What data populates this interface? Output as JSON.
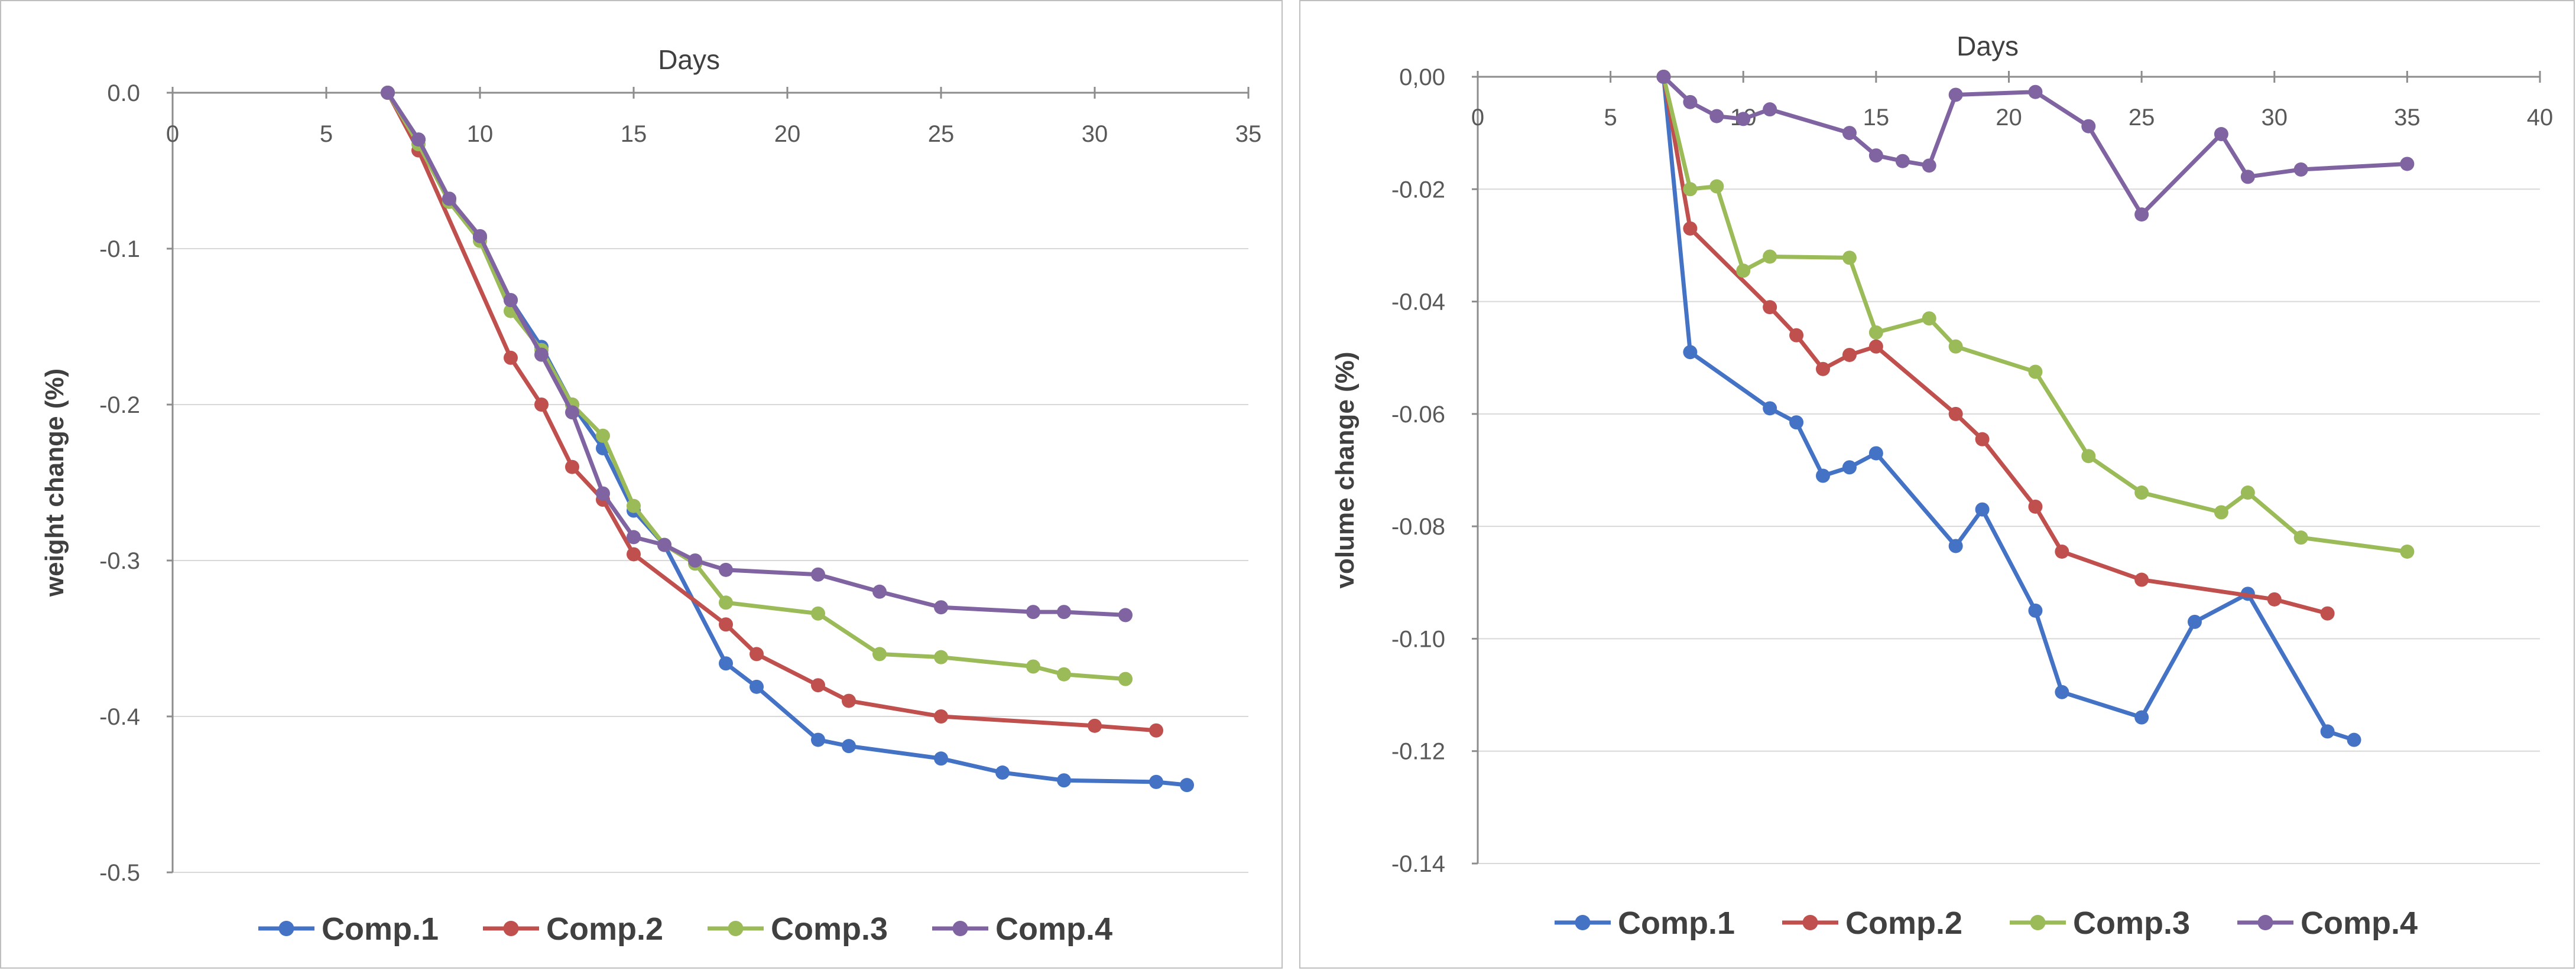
{
  "chart_data": [
    {
      "type": "line",
      "xlabel": "Days",
      "ylabel": "weight change (%)",
      "xlim": [
        0,
        35
      ],
      "ylim": [
        -0.5,
        0
      ],
      "x_ticks": [
        0,
        5,
        10,
        15,
        20,
        25,
        30,
        35
      ],
      "x_tick_labels": [
        "0",
        "5",
        "10",
        "15",
        "20",
        "25",
        "30",
        "35"
      ],
      "y_ticks": [
        0,
        -0.1,
        -0.2,
        -0.3,
        -0.4,
        -0.5
      ],
      "y_tick_labels": [
        "0.0",
        "-0.1",
        "-0.2",
        "-0.3",
        "-0.4",
        "-0.5"
      ],
      "x_axis_position": "top",
      "legend_position": "bottom",
      "series": [
        {
          "name": "Comp.1",
          "color": "#4472c4",
          "x": [
            7,
            8,
            9,
            10,
            11,
            12,
            13,
            14,
            15,
            16,
            18,
            19,
            21,
            22,
            25,
            27,
            29,
            32,
            33
          ],
          "y": [
            0,
            -0.03,
            -0.068,
            -0.093,
            -0.133,
            -0.163,
            -0.2,
            -0.228,
            -0.268,
            -0.29,
            -0.366,
            -0.381,
            -0.415,
            -0.419,
            -0.427,
            -0.436,
            -0.441,
            -0.442,
            -0.444
          ]
        },
        {
          "name": "Comp.2",
          "color": "#c0504d",
          "x": [
            7,
            8,
            11,
            12,
            13,
            14,
            15,
            18,
            19,
            21,
            22,
            25,
            30,
            32
          ],
          "y": [
            0,
            -0.037,
            -0.17,
            -0.2,
            -0.24,
            -0.261,
            -0.296,
            -0.341,
            -0.36,
            -0.38,
            -0.39,
            -0.4,
            -0.406,
            -0.409
          ]
        },
        {
          "name": "Comp.3",
          "color": "#9bbb59",
          "x": [
            7,
            8,
            9,
            10,
            11,
            12,
            13,
            14,
            15,
            16,
            17,
            18,
            21,
            23,
            25,
            28,
            29,
            31
          ],
          "y": [
            0,
            -0.033,
            -0.07,
            -0.095,
            -0.14,
            -0.165,
            -0.2,
            -0.22,
            -0.265,
            -0.29,
            -0.302,
            -0.327,
            -0.334,
            -0.36,
            -0.362,
            -0.368,
            -0.373,
            -0.376
          ]
        },
        {
          "name": "Comp.4",
          "color": "#8064a2",
          "x": [
            7,
            8,
            9,
            10,
            11,
            12,
            13,
            14,
            15,
            16,
            17,
            18,
            21,
            23,
            25,
            28,
            29,
            31
          ],
          "y": [
            0,
            -0.03,
            -0.068,
            -0.092,
            -0.133,
            -0.168,
            -0.205,
            -0.257,
            -0.285,
            -0.29,
            -0.3,
            -0.306,
            -0.309,
            -0.32,
            -0.33,
            -0.333,
            -0.333,
            -0.335
          ]
        }
      ]
    },
    {
      "type": "line",
      "xlabel": "Days",
      "ylabel": "volume change (%)",
      "xlim": [
        0,
        40
      ],
      "ylim": [
        -0.14,
        0
      ],
      "x_ticks": [
        0,
        5,
        10,
        15,
        20,
        25,
        30,
        35,
        40
      ],
      "x_tick_labels": [
        "0",
        "5",
        "10",
        "15",
        "20",
        "25",
        "30",
        "35",
        "40"
      ],
      "y_ticks": [
        0,
        -0.02,
        -0.04,
        -0.06,
        -0.08,
        -0.1,
        -0.12,
        -0.14
      ],
      "y_tick_labels": [
        "0,00",
        "-0.02",
        "-0.04",
        "-0.06",
        "-0.08",
        "-0.10",
        "-0.12",
        "-0.14"
      ],
      "x_axis_position": "top",
      "legend_position": "bottom",
      "series": [
        {
          "name": "Comp.1",
          "color": "#4472c4",
          "x": [
            7,
            8,
            11,
            12,
            13,
            14,
            15,
            18,
            19,
            21,
            22,
            25,
            27,
            29,
            32,
            33
          ],
          "y": [
            0,
            -0.049,
            -0.059,
            -0.0615,
            -0.071,
            -0.0695,
            -0.067,
            -0.0835,
            -0.077,
            -0.095,
            -0.1095,
            -0.114,
            -0.097,
            -0.092,
            -0.1165,
            -0.118
          ]
        },
        {
          "name": "Comp.2",
          "color": "#c0504d",
          "x": [
            7,
            8,
            11,
            12,
            13,
            14,
            15,
            18,
            19,
            21,
            22,
            25,
            30,
            32
          ],
          "y": [
            0,
            -0.027,
            -0.041,
            -0.046,
            -0.052,
            -0.0495,
            -0.048,
            -0.06,
            -0.0645,
            -0.0765,
            -0.0845,
            -0.0895,
            -0.093,
            -0.0955
          ]
        },
        {
          "name": "Comp.3",
          "color": "#9bbb59",
          "x": [
            7,
            8,
            9,
            10,
            11,
            14,
            15,
            17,
            18,
            21,
            23,
            25,
            28,
            29,
            31,
            35
          ],
          "y": [
            0,
            -0.02,
            -0.0195,
            -0.0345,
            -0.032,
            -0.0322,
            -0.0455,
            -0.043,
            -0.048,
            -0.0525,
            -0.0675,
            -0.074,
            -0.0775,
            -0.074,
            -0.082,
            -0.0845
          ]
        },
        {
          "name": "Comp.4",
          "color": "#8064a2",
          "x": [
            7,
            8,
            9,
            10,
            11,
            14,
            15,
            16,
            17,
            18,
            21,
            23,
            25,
            28,
            29,
            31,
            35
          ],
          "y": [
            0,
            -0.0045,
            -0.007,
            -0.0075,
            -0.0058,
            -0.01,
            -0.014,
            -0.015,
            -0.0158,
            -0.0032,
            -0.0027,
            -0.0088,
            -0.0245,
            -0.0102,
            -0.0178,
            -0.0165,
            -0.0155
          ]
        }
      ]
    }
  ]
}
